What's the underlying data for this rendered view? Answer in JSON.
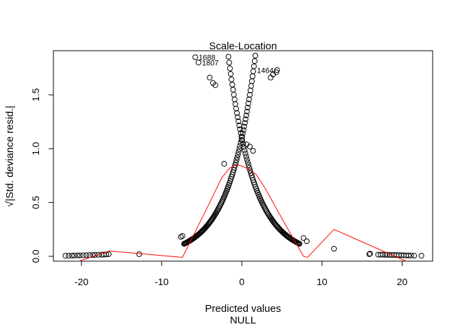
{
  "chart_data": {
    "type": "scatter",
    "title": "Scale-Location",
    "xlabel": "Predicted values",
    "sublabel": "NULL",
    "ylabel": "√|Std. deviance resid.|",
    "xlim": [
      -23.5,
      23.8
    ],
    "ylim": [
      -0.045,
      1.91
    ],
    "xticks": [
      -20,
      -10,
      0,
      10,
      20
    ],
    "xtick_labels": [
      "-20",
      "-10",
      "0",
      "10",
      "20"
    ],
    "yticks": [
      0.0,
      0.5,
      1.0,
      1.5
    ],
    "ytick_labels": [
      "0.0",
      "0.5",
      "1.0",
      "1.5"
    ],
    "grid": false,
    "colors": {
      "points": "#000000",
      "smoother": "#ff0000"
    },
    "labeled_points": [
      {
        "label": "1688",
        "x": -5.8,
        "y": 1.85
      },
      {
        "label": "1807",
        "x": -5.4,
        "y": 1.8
      },
      {
        "label": "1464",
        "x": 4.4,
        "y": 1.73
      }
    ],
    "points": [
      [
        -22.0,
        0.005
      ],
      [
        -21.6,
        0.005
      ],
      [
        -21.2,
        0.006
      ],
      [
        -20.9,
        0.007
      ],
      [
        -20.5,
        0.008
      ],
      [
        -20.2,
        0.008
      ],
      [
        -19.8,
        0.009
      ],
      [
        -19.4,
        0.01
      ],
      [
        -19.0,
        0.011
      ],
      [
        -18.6,
        0.012
      ],
      [
        -18.3,
        0.013
      ],
      [
        -17.9,
        0.014
      ],
      [
        -17.5,
        0.015
      ],
      [
        -17.2,
        0.016
      ],
      [
        -16.9,
        0.017
      ],
      [
        -16.6,
        0.02
      ],
      [
        -12.8,
        0.02
      ],
      [
        -7.6,
        0.18
      ],
      [
        -7.4,
        0.19
      ],
      [
        -2.2,
        0.86
      ],
      [
        0.6,
        1.04
      ],
      [
        1.0,
        1.02
      ],
      [
        1.4,
        0.98
      ],
      [
        7.7,
        0.17
      ],
      [
        8.1,
        0.14
      ],
      [
        11.5,
        0.07
      ],
      [
        15.9,
        0.02
      ],
      [
        16.0,
        0.025
      ],
      [
        17.0,
        0.015
      ],
      [
        17.3,
        0.015
      ],
      [
        17.6,
        0.015
      ],
      [
        17.9,
        0.014
      ],
      [
        18.1,
        0.014
      ],
      [
        18.4,
        0.013
      ],
      [
        18.7,
        0.012
      ],
      [
        19.0,
        0.012
      ],
      [
        19.3,
        0.011
      ],
      [
        19.6,
        0.01
      ],
      [
        19.9,
        0.01
      ],
      [
        20.2,
        0.009
      ],
      [
        20.5,
        0.008
      ],
      [
        20.8,
        0.008
      ],
      [
        21.1,
        0.007
      ],
      [
        21.5,
        0.006
      ],
      [
        22.4,
        0.005
      ],
      [
        -4.0,
        1.66
      ],
      [
        -3.6,
        1.61
      ],
      [
        -3.3,
        1.59
      ],
      [
        3.6,
        1.66
      ],
      [
        3.9,
        1.69
      ],
      [
        4.3,
        1.71
      ]
    ],
    "curves": [
      {
        "name": "",
        "x_range": [
          -6.3,
          7.2
        ],
        "peak": 1.1,
        "scale": 3.2,
        "dir": "decreasing"
      },
      {
        "name": "",
        "x_range": [
          -7.2,
          5.0
        ],
        "peak": 1.1,
        "scale": 3.2,
        "dir": "increasing"
      }
    ],
    "smoother": [
      [
        -20.5,
        -0.05
      ],
      [
        -16.5,
        0.05
      ],
      [
        -7.4,
        -0.01
      ],
      [
        -4.0,
        0.5
      ],
      [
        -2.5,
        0.73
      ],
      [
        -1.5,
        0.82
      ],
      [
        -0.8,
        0.85
      ],
      [
        0.0,
        0.84
      ],
      [
        0.8,
        0.81
      ],
      [
        1.8,
        0.76
      ],
      [
        3.0,
        0.62
      ],
      [
        4.5,
        0.42
      ],
      [
        6.0,
        0.22
      ],
      [
        7.7,
        0.0
      ],
      [
        8.2,
        -0.01
      ],
      [
        11.5,
        0.25
      ],
      [
        20.0,
        -0.03
      ],
      [
        21.5,
        -0.07
      ]
    ]
  }
}
